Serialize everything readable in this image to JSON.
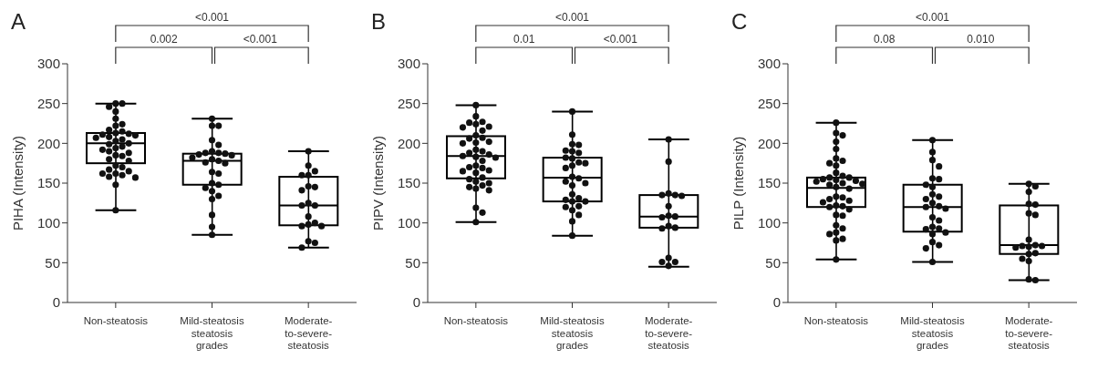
{
  "chart_data": [
    {
      "type": "box",
      "title": "A",
      "ylabel": "PIHA (Intensity)",
      "categories": [
        "Non-steatosis",
        "Mild-steatosis steatosis grades",
        "Moderate-to-severe-steatosis"
      ],
      "ylim": [
        0,
        300
      ],
      "yticks": [
        0,
        50,
        100,
        150,
        200,
        250,
        300
      ],
      "annotations": [
        "<0.001",
        "0.002",
        "<0.001"
      ],
      "boxes": [
        {
          "low": 116,
          "q1": 175,
          "median": 200,
          "q3": 213,
          "high": 250
        },
        {
          "low": 85,
          "q1": 148,
          "median": 178,
          "q3": 187,
          "high": 231
        },
        {
          "low": 69,
          "q1": 97,
          "median": 122,
          "q3": 158,
          "high": 190
        }
      ],
      "series": [
        {
          "type": "scatter",
          "color": "#111111",
          "marker": "circle",
          "x": [
            "Non-steatosis",
            "Non-steatosis",
            "Non-steatosis",
            "Non-steatosis",
            "Non-steatosis",
            "Non-steatosis",
            "Non-steatosis",
            "Non-steatosis",
            "Non-steatosis",
            "Non-steatosis",
            "Non-steatosis",
            "Non-steatosis",
            "Non-steatosis",
            "Non-steatosis",
            "Non-steatosis",
            "Non-steatosis",
            "Non-steatosis",
            "Non-steatosis",
            "Non-steatosis",
            "Non-steatosis",
            "Non-steatosis",
            "Non-steatosis",
            "Non-steatosis",
            "Non-steatosis",
            "Non-steatosis",
            "Non-steatosis",
            "Non-steatosis",
            "Non-steatosis",
            "Non-steatosis",
            "Non-steatosis",
            "Non-steatosis",
            "Non-steatosis",
            "Non-steatosis",
            "Non-steatosis",
            "Non-steatosis",
            "Non-steatosis",
            "Non-steatosis",
            "Non-steatosis",
            "Non-steatosis",
            "Mild-steatosis steatosis grades",
            "Mild-steatosis steatosis grades",
            "Mild-steatosis steatosis grades",
            "Mild-steatosis steatosis grades",
            "Mild-steatosis steatosis grades",
            "Mild-steatosis steatosis grades",
            "Mild-steatosis steatosis grades",
            "Mild-steatosis steatosis grades",
            "Mild-steatosis steatosis grades",
            "Mild-steatosis steatosis grades",
            "Mild-steatosis steatosis grades",
            "Mild-steatosis steatosis grades",
            "Mild-steatosis steatosis grades",
            "Mild-steatosis steatosis grades",
            "Mild-steatosis steatosis grades",
            "Mild-steatosis steatosis grades",
            "Mild-steatosis steatosis grades",
            "Mild-steatosis steatosis grades",
            "Mild-steatosis steatosis grades",
            "Mild-steatosis steatosis grades",
            "Mild-steatosis steatosis grades",
            "Mild-steatosis steatosis grades",
            "Mild-steatosis steatosis grades",
            "Mild-steatosis steatosis grades",
            "Mild-steatosis steatosis grades",
            "Mild-steatosis steatosis grades",
            "Mild-steatosis steatosis grades",
            "Moderate-to-severe-steatosis",
            "Moderate-to-severe-steatosis",
            "Moderate-to-severe-steatosis",
            "Moderate-to-severe-steatosis",
            "Moderate-to-severe-steatosis",
            "Moderate-to-severe-steatosis",
            "Moderate-to-severe-steatosis",
            "Moderate-to-severe-steatosis",
            "Moderate-to-severe-steatosis",
            "Moderate-to-severe-steatosis",
            "Moderate-to-severe-steatosis",
            "Moderate-to-severe-steatosis",
            "Moderate-to-severe-steatosis",
            "Moderate-to-severe-steatosis",
            "Moderate-to-severe-steatosis",
            "Moderate-to-severe-steatosis",
            "Moderate-to-severe-steatosis",
            "Moderate-to-severe-steatosis",
            "Moderate-to-severe-steatosis"
          ],
          "values": [
            250,
            250,
            246,
            240,
            231,
            224,
            222,
            217,
            215,
            213,
            212,
            211,
            210,
            208,
            207,
            205,
            203,
            200,
            199,
            196,
            194,
            192,
            190,
            188,
            185,
            184,
            180,
            178,
            172,
            170,
            167,
            165,
            162,
            162,
            160,
            158,
            157,
            148,
            116,
            231,
            222,
            222,
            204,
            198,
            190,
            188,
            188,
            187,
            186,
            185,
            182,
            180,
            178,
            176,
            175,
            164,
            162,
            150,
            148,
            144,
            140,
            134,
            130,
            110,
            95,
            85,
            190,
            172,
            165,
            160,
            160,
            146,
            145,
            141,
            125,
            122,
            122,
            108,
            100,
            98,
            96,
            96,
            77,
            75,
            69
          ]
        }
      ]
    },
    {
      "type": "box",
      "title": "B",
      "ylabel": "PIPV (Intensity)",
      "categories": [
        "Non-steatosis",
        "Mild-steatosis steatosis grades",
        "Moderate-to-severe-steatosis"
      ],
      "ylim": [
        0,
        300
      ],
      "yticks": [
        0,
        50,
        100,
        150,
        200,
        250,
        300
      ],
      "annotations": [
        "<0.001",
        "0.01",
        "<0.001"
      ],
      "boxes": [
        {
          "low": 101,
          "q1": 156,
          "median": 184,
          "q3": 209,
          "high": 248
        },
        {
          "low": 84,
          "q1": 127,
          "median": 157,
          "q3": 182,
          "high": 240
        },
        {
          "low": 45,
          "q1": 94,
          "median": 108,
          "q3": 135,
          "high": 205
        }
      ],
      "series": [
        {
          "type": "scatter",
          "color": "#111111",
          "marker": "circle",
          "x": [
            "Non-steatosis",
            "Non-steatosis",
            "Non-steatosis",
            "Non-steatosis",
            "Non-steatosis",
            "Non-steatosis",
            "Non-steatosis",
            "Non-steatosis",
            "Non-steatosis",
            "Non-steatosis",
            "Non-steatosis",
            "Non-steatosis",
            "Non-steatosis",
            "Non-steatosis",
            "Non-steatosis",
            "Non-steatosis",
            "Non-steatosis",
            "Non-steatosis",
            "Non-steatosis",
            "Non-steatosis",
            "Non-steatosis",
            "Non-steatosis",
            "Non-steatosis",
            "Non-steatosis",
            "Non-steatosis",
            "Non-steatosis",
            "Non-steatosis",
            "Non-steatosis",
            "Non-steatosis",
            "Non-steatosis",
            "Non-steatosis",
            "Non-steatosis",
            "Non-steatosis",
            "Non-steatosis",
            "Non-steatosis",
            "Non-steatosis",
            "Non-steatosis",
            "Non-steatosis",
            "Non-steatosis",
            "Mild-steatosis steatosis grades",
            "Mild-steatosis steatosis grades",
            "Mild-steatosis steatosis grades",
            "Mild-steatosis steatosis grades",
            "Mild-steatosis steatosis grades",
            "Mild-steatosis steatosis grades",
            "Mild-steatosis steatosis grades",
            "Mild-steatosis steatosis grades",
            "Mild-steatosis steatosis grades",
            "Mild-steatosis steatosis grades",
            "Mild-steatosis steatosis grades",
            "Mild-steatosis steatosis grades",
            "Mild-steatosis steatosis grades",
            "Mild-steatosis steatosis grades",
            "Mild-steatosis steatosis grades",
            "Mild-steatosis steatosis grades",
            "Mild-steatosis steatosis grades",
            "Mild-steatosis steatosis grades",
            "Mild-steatosis steatosis grades",
            "Mild-steatosis steatosis grades",
            "Mild-steatosis steatosis grades",
            "Mild-steatosis steatosis grades",
            "Mild-steatosis steatosis grades",
            "Mild-steatosis steatosis grades",
            "Mild-steatosis steatosis grades",
            "Mild-steatosis steatosis grades",
            "Mild-steatosis steatosis grades",
            "Mild-steatosis steatosis grades",
            "Mild-steatosis steatosis grades",
            "Moderate-to-severe-steatosis",
            "Moderate-to-severe-steatosis",
            "Moderate-to-severe-steatosis",
            "Moderate-to-severe-steatosis",
            "Moderate-to-severe-steatosis",
            "Moderate-to-severe-steatosis",
            "Moderate-to-severe-steatosis",
            "Moderate-to-severe-steatosis",
            "Moderate-to-severe-steatosis",
            "Moderate-to-severe-steatosis",
            "Moderate-to-severe-steatosis",
            "Moderate-to-severe-steatosis",
            "Moderate-to-severe-steatosis",
            "Moderate-to-severe-steatosis",
            "Moderate-to-severe-steatosis",
            "Moderate-to-severe-steatosis",
            "Moderate-to-severe-steatosis"
          ],
          "values": [
            248,
            234,
            227,
            226,
            224,
            221,
            220,
            216,
            210,
            207,
            206,
            202,
            201,
            200,
            192,
            190,
            188,
            186,
            184,
            183,
            182,
            178,
            172,
            170,
            169,
            166,
            165,
            163,
            157,
            155,
            152,
            150,
            147,
            145,
            143,
            141,
            119,
            113,
            101,
            240,
            211,
            199,
            198,
            191,
            190,
            188,
            182,
            181,
            176,
            175,
            172,
            169,
            158,
            156,
            152,
            150,
            147,
            136,
            131,
            129,
            127,
            127,
            121,
            120,
            116,
            110,
            102,
            84,
            205,
            177,
            137,
            135,
            135,
            134,
            121,
            109,
            108,
            107,
            96,
            94,
            93,
            56,
            51,
            51,
            46
          ]
        }
      ]
    },
    {
      "type": "box",
      "title": "C",
      "ylabel": "PILP (Intensity)",
      "categories": [
        "Non-steatosis",
        "Mild-steatosis steatosis grades",
        "Moderate-to-severe-steatosis"
      ],
      "ylim": [
        0,
        300
      ],
      "yticks": [
        0,
        50,
        100,
        150,
        200,
        250,
        300
      ],
      "annotations": [
        "<0.001",
        "0.08",
        "0.010"
      ],
      "boxes": [
        {
          "low": 54,
          "q1": 120,
          "median": 144,
          "q3": 157,
          "high": 226
        },
        {
          "low": 51,
          "q1": 89,
          "median": 120,
          "q3": 148,
          "high": 204
        },
        {
          "low": 28,
          "q1": 61,
          "median": 72,
          "q3": 122,
          "high": 149
        }
      ],
      "series": [
        {
          "type": "scatter",
          "color": "#111111",
          "marker": "circle",
          "x": [
            "Non-steatosis",
            "Non-steatosis",
            "Non-steatosis",
            "Non-steatosis",
            "Non-steatosis",
            "Non-steatosis",
            "Non-steatosis",
            "Non-steatosis",
            "Non-steatosis",
            "Non-steatosis",
            "Non-steatosis",
            "Non-steatosis",
            "Non-steatosis",
            "Non-steatosis",
            "Non-steatosis",
            "Non-steatosis",
            "Non-steatosis",
            "Non-steatosis",
            "Non-steatosis",
            "Non-steatosis",
            "Non-steatosis",
            "Non-steatosis",
            "Non-steatosis",
            "Non-steatosis",
            "Non-steatosis",
            "Non-steatosis",
            "Non-steatosis",
            "Non-steatosis",
            "Non-steatosis",
            "Non-steatosis",
            "Non-steatosis",
            "Non-steatosis",
            "Non-steatosis",
            "Non-steatosis",
            "Non-steatosis",
            "Non-steatosis",
            "Non-steatosis",
            "Non-steatosis",
            "Non-steatosis",
            "Non-steatosis",
            "Mild-steatosis steatosis grades",
            "Mild-steatosis steatosis grades",
            "Mild-steatosis steatosis grades",
            "Mild-steatosis steatosis grades",
            "Mild-steatosis steatosis grades",
            "Mild-steatosis steatosis grades",
            "Mild-steatosis steatosis grades",
            "Mild-steatosis steatosis grades",
            "Mild-steatosis steatosis grades",
            "Mild-steatosis steatosis grades",
            "Mild-steatosis steatosis grades",
            "Mild-steatosis steatosis grades",
            "Mild-steatosis steatosis grades",
            "Mild-steatosis steatosis grades",
            "Mild-steatosis steatosis grades",
            "Mild-steatosis steatosis grades",
            "Mild-steatosis steatosis grades",
            "Mild-steatosis steatosis grades",
            "Mild-steatosis steatosis grades",
            "Mild-steatosis steatosis grades",
            "Mild-steatosis steatosis grades",
            "Mild-steatosis steatosis grades",
            "Mild-steatosis steatosis grades",
            "Mild-steatosis steatosis grades",
            "Mild-steatosis steatosis grades",
            "Mild-steatosis steatosis grades",
            "Moderate-to-severe-steatosis",
            "Moderate-to-severe-steatosis",
            "Moderate-to-severe-steatosis",
            "Moderate-to-severe-steatosis",
            "Moderate-to-severe-steatosis",
            "Moderate-to-severe-steatosis",
            "Moderate-to-severe-steatosis",
            "Moderate-to-severe-steatosis",
            "Moderate-to-severe-steatosis",
            "Moderate-to-severe-steatosis",
            "Moderate-to-severe-steatosis",
            "Moderate-to-severe-steatosis",
            "Moderate-to-severe-steatosis",
            "Moderate-to-severe-steatosis",
            "Moderate-to-severe-steatosis",
            "Moderate-to-severe-steatosis",
            "Moderate-to-severe-steatosis",
            "Moderate-to-severe-steatosis",
            "Moderate-to-severe-steatosis"
          ],
          "values": [
            226,
            213,
            210,
            202,
            193,
            181,
            178,
            175,
            172,
            163,
            159,
            157,
            157,
            155,
            154,
            153,
            152,
            150,
            149,
            148,
            145,
            143,
            133,
            132,
            130,
            128,
            126,
            122,
            121,
            120,
            117,
            110,
            109,
            97,
            93,
            88,
            86,
            80,
            78,
            54,
            204,
            189,
            179,
            171,
            156,
            155,
            148,
            145,
            136,
            133,
            130,
            125,
            121,
            120,
            118,
            107,
            103,
            95,
            93,
            92,
            88,
            86,
            76,
            72,
            68,
            51,
            149,
            146,
            139,
            124,
            123,
            112,
            110,
            79,
            72,
            71,
            71,
            70,
            69,
            62,
            61,
            55,
            52,
            29,
            28
          ]
        }
      ]
    }
  ]
}
